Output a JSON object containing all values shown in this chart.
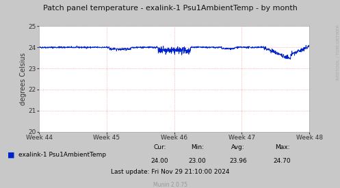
{
  "title": "Patch panel temperature - exalink-1 Psu1AmbientTemp - by month",
  "ylabel": "degrees Celsius",
  "ylim": [
    20,
    25
  ],
  "yticks": [
    20,
    21,
    22,
    23,
    24,
    25
  ],
  "week_labels": [
    "Week 44",
    "Week 45",
    "Week 46",
    "Week 47",
    "Week 48"
  ],
  "line_color": "#0022cc",
  "bg_color": "#c8c8c8",
  "plot_bg_color": "#ffffff",
  "grid_color": "#ff8888",
  "legend_label": "exalink-1 Psu1AmbientTemp",
  "legend_color": "#0022cc",
  "stats_cur": "24.00",
  "stats_min": "23.00",
  "stats_avg": "23.96",
  "stats_max": "24.70",
  "last_update": "Last update: Fri Nov 29 21:10:00 2024",
  "munin_version": "Munin 2.0.75",
  "rrdtool_label": "RRDTOOL / TOBI OETIKER",
  "baseline_temp": 24.0,
  "num_points": 1500
}
